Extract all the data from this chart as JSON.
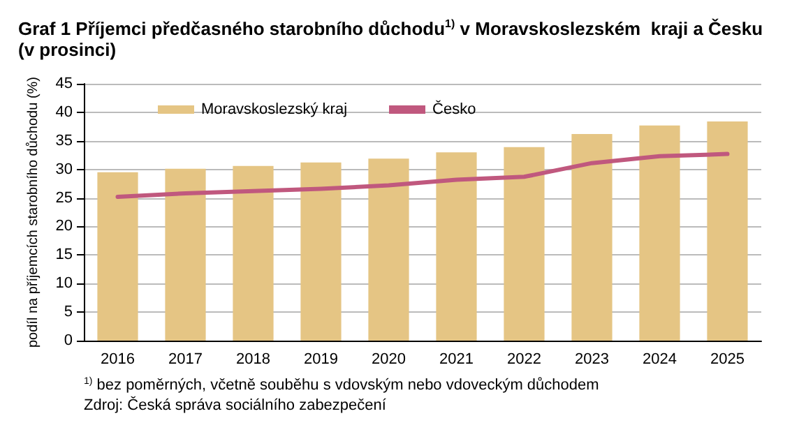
{
  "chart_data": {
    "type": "bar",
    "title": "Graf 1 Příjemci předčasného starobního důchodu$^{1)}$ v Moravskoslezském  kraji a Česku\n(v prosinci)",
    "ylabel": "podíl na příjemcích starobního důchodu (%)",
    "categories": [
      "2016",
      "2017",
      "2018",
      "2019",
      "2020",
      "2021",
      "2022",
      "2023",
      "2024",
      "2025"
    ],
    "series": [
      {
        "name": "Moravskoslezský kraj",
        "color": "#e5c584",
        "values": [
          29.5,
          30.1,
          30.6,
          31.2,
          31.9,
          33.0,
          33.9,
          36.2,
          37.7,
          38.4
        ]
      },
      {
        "name": "Česko",
        "type": "line",
        "color": "#c0587e",
        "values": [
          25.2,
          25.8,
          26.2,
          26.6,
          27.2,
          28.2,
          28.7,
          31.1,
          32.3,
          32.7
        ]
      }
    ],
    "ylim": [
      0,
      45
    ],
    "yticks": [
      0,
      5,
      10,
      15,
      20,
      25,
      30,
      35,
      40,
      45
    ],
    "grid": "y",
    "legend": "top left",
    "marker": "none",
    "annotations": [
      "$^{1)}$ bez poměrných, včetně souběhu s vdovským nebo vdoveckým důchodem",
      "Zdroj: Česká správa sociálního zabezpečení"
    ]
  }
}
